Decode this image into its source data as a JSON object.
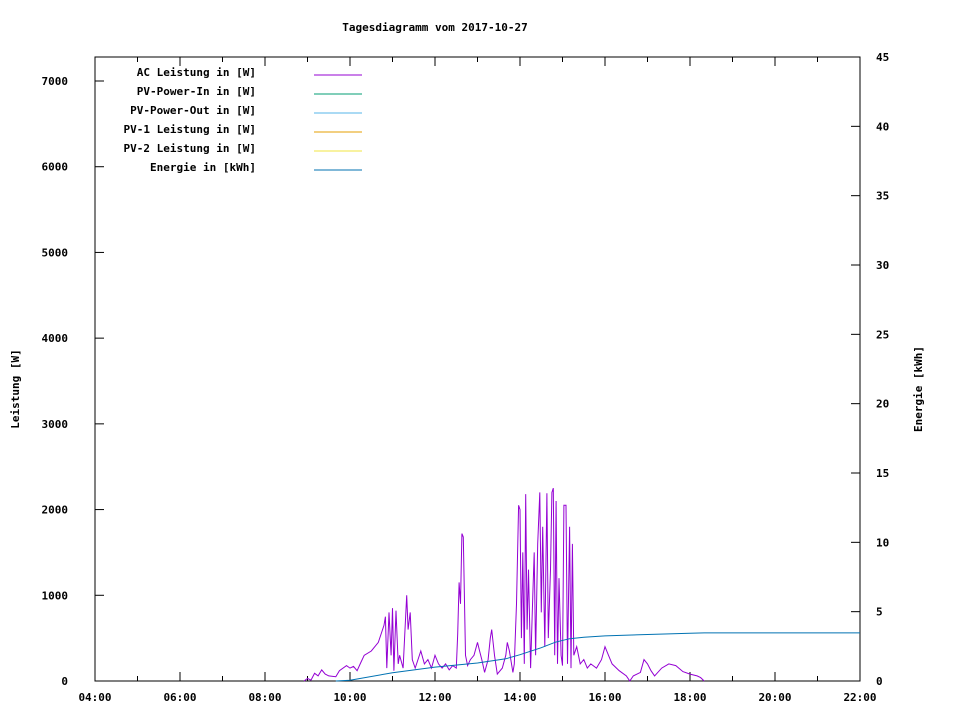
{
  "chart_data": {
    "type": "line",
    "title": "Tagesdiagramm vom 2017-10-27",
    "ylabel": "Leistung [W]",
    "y2label": "Energie [kWh]",
    "xlim": [
      "04:00",
      "22:00"
    ],
    "ylim": [
      0,
      7280
    ],
    "y2lim": [
      0,
      45
    ],
    "xticks": [
      "04:00",
      "06:00",
      "08:00",
      "10:00",
      "12:00",
      "14:00",
      "16:00",
      "18:00",
      "20:00",
      "22:00"
    ],
    "yticks": [
      0,
      1000,
      2000,
      3000,
      4000,
      5000,
      6000,
      7000
    ],
    "y2ticks": [
      0,
      5,
      10,
      15,
      20,
      25,
      30,
      35,
      40,
      45
    ],
    "grid": false,
    "legend_position": "top-left",
    "series": [
      {
        "name": "AC Leistung in [W]",
        "axis": "y",
        "color": "#9400d3",
        "points": [
          [
            "08:55",
            0
          ],
          [
            "09:00",
            30
          ],
          [
            "09:05",
            10
          ],
          [
            "09:10",
            90
          ],
          [
            "09:15",
            60
          ],
          [
            "09:20",
            130
          ],
          [
            "09:25",
            80
          ],
          [
            "09:30",
            60
          ],
          [
            "09:40",
            50
          ],
          [
            "09:45",
            120
          ],
          [
            "09:55",
            180
          ],
          [
            "10:00",
            150
          ],
          [
            "10:05",
            170
          ],
          [
            "10:10",
            120
          ],
          [
            "10:15",
            210
          ],
          [
            "10:20",
            300
          ],
          [
            "10:30",
            350
          ],
          [
            "10:40",
            450
          ],
          [
            "10:48",
            650
          ],
          [
            "10:50",
            750
          ],
          [
            "10:52",
            150
          ],
          [
            "10:55",
            800
          ],
          [
            "10:58",
            300
          ],
          [
            "11:00",
            850
          ],
          [
            "11:02",
            120
          ],
          [
            "11:05",
            820
          ],
          [
            "11:08",
            200
          ],
          [
            "11:10",
            300
          ],
          [
            "11:15",
            150
          ],
          [
            "11:20",
            1000
          ],
          [
            "11:22",
            600
          ],
          [
            "11:25",
            800
          ],
          [
            "11:28",
            250
          ],
          [
            "11:32",
            150
          ],
          [
            "11:40",
            350
          ],
          [
            "11:45",
            200
          ],
          [
            "11:50",
            250
          ],
          [
            "11:55",
            150
          ],
          [
            "12:00",
            300
          ],
          [
            "12:05",
            200
          ],
          [
            "12:10",
            150
          ],
          [
            "12:15",
            200
          ],
          [
            "12:20",
            130
          ],
          [
            "12:25",
            180
          ],
          [
            "12:30",
            150
          ],
          [
            "12:32",
            550
          ],
          [
            "12:34",
            1150
          ],
          [
            "12:36",
            900
          ],
          [
            "12:38",
            1720
          ],
          [
            "12:40",
            1680
          ],
          [
            "12:43",
            300
          ],
          [
            "12:46",
            180
          ],
          [
            "12:50",
            250
          ],
          [
            "12:55",
            300
          ],
          [
            "13:00",
            450
          ],
          [
            "13:03",
            350
          ],
          [
            "13:06",
            250
          ],
          [
            "13:10",
            100
          ],
          [
            "13:15",
            250
          ],
          [
            "13:18",
            500
          ],
          [
            "13:20",
            600
          ],
          [
            "13:24",
            300
          ],
          [
            "13:28",
            80
          ],
          [
            "13:35",
            150
          ],
          [
            "13:40",
            300
          ],
          [
            "13:42",
            450
          ],
          [
            "13:45",
            350
          ],
          [
            "13:50",
            100
          ],
          [
            "13:52",
            200
          ],
          [
            "13:55",
            900
          ],
          [
            "13:58",
            2050
          ],
          [
            "14:00",
            2000
          ],
          [
            "14:02",
            500
          ],
          [
            "14:04",
            1500
          ],
          [
            "14:06",
            200
          ],
          [
            "14:08",
            2180
          ],
          [
            "14:10",
            600
          ],
          [
            "14:12",
            1300
          ],
          [
            "14:15",
            150
          ],
          [
            "14:18",
            1000
          ],
          [
            "14:20",
            1500
          ],
          [
            "14:22",
            300
          ],
          [
            "14:25",
            1600
          ],
          [
            "14:28",
            2200
          ],
          [
            "14:30",
            800
          ],
          [
            "14:32",
            1800
          ],
          [
            "14:35",
            400
          ],
          [
            "14:38",
            2190
          ],
          [
            "14:40",
            500
          ],
          [
            "14:43",
            1300
          ],
          [
            "14:45",
            2200
          ],
          [
            "14:47",
            2250
          ],
          [
            "14:49",
            300
          ],
          [
            "14:51",
            2100
          ],
          [
            "14:53",
            200
          ],
          [
            "14:55",
            1200
          ],
          [
            "14:58",
            300
          ],
          [
            "15:00",
            180
          ],
          [
            "15:02",
            2050
          ],
          [
            "15:05",
            2050
          ],
          [
            "15:07",
            200
          ],
          [
            "15:10",
            1800
          ],
          [
            "15:12",
            150
          ],
          [
            "15:14",
            1600
          ],
          [
            "15:16",
            300
          ],
          [
            "15:20",
            400
          ],
          [
            "15:25",
            200
          ],
          [
            "15:30",
            250
          ],
          [
            "15:35",
            150
          ],
          [
            "15:40",
            200
          ],
          [
            "15:48",
            150
          ],
          [
            "15:55",
            250
          ],
          [
            "16:00",
            400
          ],
          [
            "16:05",
            300
          ],
          [
            "16:10",
            200
          ],
          [
            "16:20",
            120
          ],
          [
            "16:30",
            60
          ],
          [
            "16:35",
            0
          ],
          [
            "16:40",
            60
          ],
          [
            "16:50",
            100
          ],
          [
            "16:55",
            250
          ],
          [
            "17:00",
            200
          ],
          [
            "17:05",
            120
          ],
          [
            "17:10",
            60
          ],
          [
            "17:20",
            150
          ],
          [
            "17:30",
            200
          ],
          [
            "17:40",
            180
          ],
          [
            "17:50",
            110
          ],
          [
            "18:00",
            80
          ],
          [
            "18:10",
            60
          ],
          [
            "18:15",
            40
          ],
          [
            "18:20",
            0
          ]
        ]
      },
      {
        "name": "PV-Power-In in [W]",
        "axis": "y",
        "color": "#009e73",
        "points": []
      },
      {
        "name": "PV-Power-Out in [W]",
        "axis": "y",
        "color": "#56b4e9",
        "points": []
      },
      {
        "name": "PV-1 Leistung in [W]",
        "axis": "y",
        "color": "#e69f00",
        "points": []
      },
      {
        "name": "PV-2 Leistung in [W]",
        "axis": "y",
        "color": "#f0e442",
        "points": []
      },
      {
        "name": "Energie in [kWh]",
        "axis": "y2",
        "color": "#0072b2",
        "points": [
          [
            "09:40",
            0
          ],
          [
            "10:00",
            0.05
          ],
          [
            "11:00",
            0.6
          ],
          [
            "12:00",
            1.0
          ],
          [
            "13:00",
            1.3
          ],
          [
            "13:40",
            1.6
          ],
          [
            "14:00",
            1.9
          ],
          [
            "14:30",
            2.4
          ],
          [
            "14:50",
            2.8
          ],
          [
            "15:10",
            3.05
          ],
          [
            "15:30",
            3.15
          ],
          [
            "16:00",
            3.25
          ],
          [
            "17:00",
            3.35
          ],
          [
            "18:00",
            3.45
          ],
          [
            "18:20",
            3.47
          ],
          [
            "22:00",
            3.47
          ]
        ]
      }
    ]
  }
}
